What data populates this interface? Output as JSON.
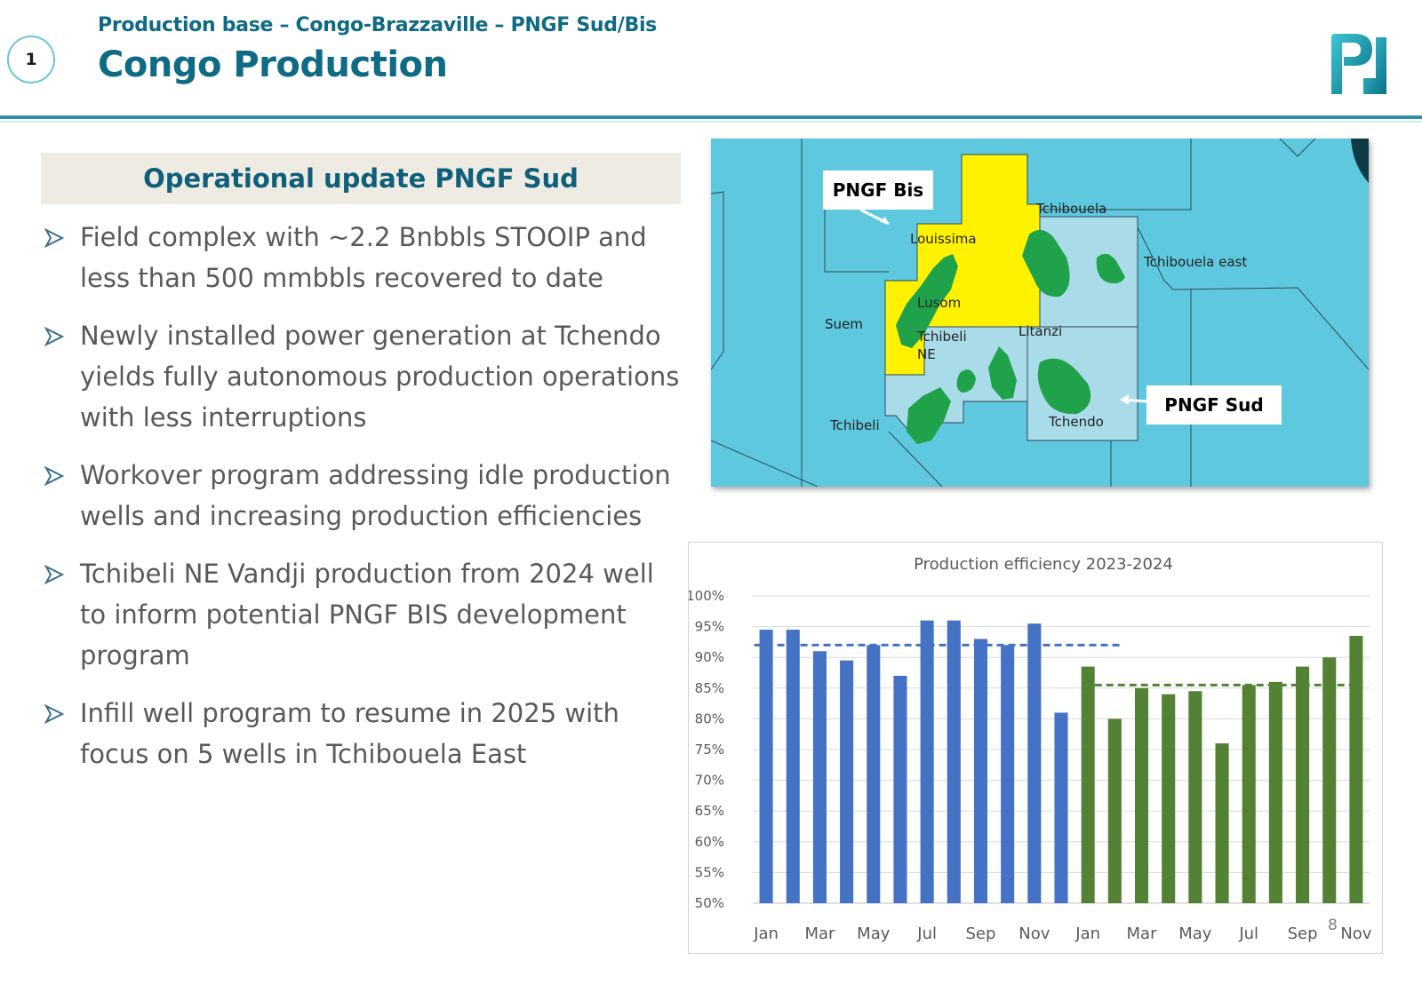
{
  "header": {
    "section_number": "1",
    "subtitle": "Production base – Congo-Brazzaville – PNGF Sud/Bis",
    "title": "Congo Production"
  },
  "left_panel": {
    "heading": "Operational update PNGF Sud",
    "bullets": [
      "Field complex with ~2.2 Bnbbls STOOIP and less than 500 mmbbls recovered to date",
      "Newly installed power generation at Tchendo yields fully autonomous production operations with less interruptions",
      "Workover program addressing idle production wells and increasing production efficiencies",
      "Tchibeli NE Vandji production from 2024 well to inform potential PNGF BIS development program",
      "Infill well program to resume in 2025 with focus on 5 wells in Tchibouela East"
    ]
  },
  "map": {
    "callouts": {
      "bis": "PNGF Bis",
      "sud": "PNGF Sud"
    },
    "labels": {
      "tchibouela": "Tchibouela",
      "tchibouela_east": "Tchibouela east",
      "louissima": "Louissima",
      "lusom": "Lusom",
      "suem": "Suem",
      "tchibeli_ne_1": "Tchibeli",
      "tchibeli_ne_2": "NE",
      "litanzi": "Litanzi",
      "tchendo": "Tchendo",
      "tchibeli": "Tchibeli"
    },
    "colors": {
      "sea": "#5ec8de",
      "block": "#a9dbe8",
      "bis_block": "#fff200",
      "field": "#1fa24a"
    }
  },
  "chart_data": {
    "type": "bar",
    "title": "Production efficiency 2023-2024",
    "xlabel": "",
    "ylabel": "",
    "ylim": [
      50,
      100
    ],
    "y_ticks": [
      "100%",
      "95%",
      "90%",
      "85%",
      "80%",
      "75%",
      "70%",
      "65%",
      "60%",
      "55%",
      "50%"
    ],
    "x_tick_labels": [
      "Jan",
      "Mar",
      "May",
      "Jul",
      "Sep",
      "Nov",
      "Jan",
      "Mar",
      "May",
      "Jul",
      "Sep",
      "Nov"
    ],
    "grid": true,
    "series": [
      {
        "color": "#4472c4",
        "categories": [
          "Jan",
          "Feb",
          "Mar",
          "Apr",
          "May",
          "Jun",
          "Jul",
          "Aug",
          "Sep",
          "Oct",
          "Nov",
          "Dec"
        ],
        "values": [
          94.5,
          94.5,
          91,
          89.5,
          92,
          87,
          96,
          96,
          93,
          92,
          95.5,
          81
        ],
        "average": 92
      },
      {
        "color": "#548235",
        "categories": [
          "Jan",
          "Feb",
          "Mar",
          "Apr",
          "May",
          "Jun",
          "Jul",
          "Aug",
          "Sep",
          "Oct",
          "Nov"
        ],
        "values": [
          88.5,
          80,
          85,
          84,
          84.5,
          76,
          85.5,
          86,
          88.5,
          90,
          93.5
        ],
        "average": 85.5
      }
    ]
  },
  "page_number": "8"
}
